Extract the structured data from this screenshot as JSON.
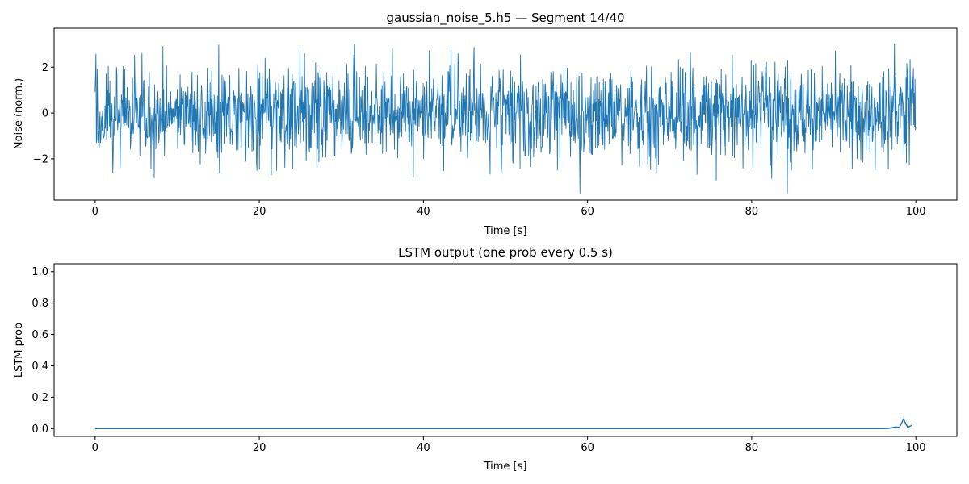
{
  "chart_data": [
    {
      "type": "line",
      "title": "gaussian_noise_5.h5 — Segment 14/40",
      "xlabel": "Time [s]",
      "ylabel": "Noise (norm.)",
      "xlim": [
        -5,
        105
      ],
      "ylim": [
        -3.8,
        3.7
      ],
      "xticks": [
        0,
        20,
        40,
        60,
        80,
        100
      ],
      "yticks": [
        -2,
        0,
        2
      ],
      "xtick_labels": [
        "0",
        "20",
        "40",
        "60",
        "80",
        "100"
      ],
      "ytick_labels": [
        "−2",
        "0",
        "2"
      ],
      "grid": false,
      "series_color": "#1f77b4",
      "signal": {
        "description": "dense gaussian noise waveform, mean 0, std about 1",
        "x_start": 0,
        "x_end": 100,
        "n_points": 2000,
        "mean": 0,
        "std": 1.0,
        "min": -3.5,
        "max": 3.3
      }
    },
    {
      "type": "line",
      "title": "LSTM output (one prob every 0.5 s)",
      "xlabel": "Time [s]",
      "ylabel": "LSTM prob",
      "xlim": [
        -5,
        105
      ],
      "ylim": [
        -0.05,
        1.05
      ],
      "xticks": [
        0,
        20,
        40,
        60,
        80,
        100
      ],
      "yticks": [
        0.0,
        0.2,
        0.4,
        0.6,
        0.8,
        1.0
      ],
      "xtick_labels": [
        "0",
        "20",
        "40",
        "60",
        "80",
        "100"
      ],
      "ytick_labels": [
        "0.0",
        "0.2",
        "0.4",
        "0.6",
        "0.8",
        "1.0"
      ],
      "grid": false,
      "series_color": "#1f77b4",
      "points": [
        [
          0,
          0.0
        ],
        [
          96,
          0.0
        ],
        [
          96.5,
          0.001
        ],
        [
          97,
          0.004
        ],
        [
          97.5,
          0.01
        ],
        [
          98,
          0.008
        ],
        [
          98.5,
          0.06
        ],
        [
          99,
          0.008
        ],
        [
          99.5,
          0.02
        ]
      ]
    }
  ]
}
